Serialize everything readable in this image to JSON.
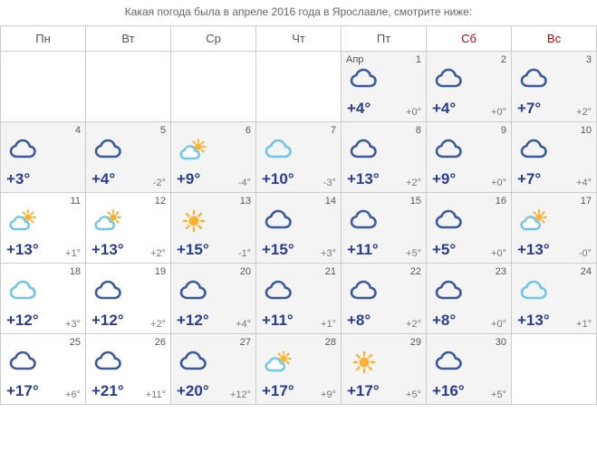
{
  "caption": "Какая погода была в апреле 2016 года в Ярославле, смотрите ниже:",
  "weekdays": [
    "Пн",
    "Вт",
    "Ср",
    "Чт",
    "Пт",
    "Сб",
    "Вс"
  ],
  "month_label": "Апр",
  "colors": {
    "hi_text": "#2a3d8f",
    "lo_text": "#777777",
    "border": "#cccccc",
    "weekend_header": "#cc0000",
    "shaded_bg": "#f4f4f4",
    "cloud_dark": "#3b5b9a",
    "cloud_light": "#6fc6e8",
    "sun": "#f9b233"
  },
  "grid": [
    [
      {
        "empty": true
      },
      {
        "empty": true
      },
      {
        "empty": true
      },
      {
        "empty": true
      },
      {
        "day": 1,
        "month_start": true,
        "shaded": true,
        "icon": "cloud-dark",
        "hi": "+4°",
        "lo": "+0°"
      },
      {
        "day": 2,
        "shaded": true,
        "icon": "cloud-dark",
        "hi": "+4°",
        "lo": "+0°"
      },
      {
        "day": 3,
        "shaded": true,
        "icon": "cloud-dark",
        "hi": "+7°",
        "lo": "+2°"
      }
    ],
    [
      {
        "day": 4,
        "shaded": true,
        "icon": "cloud-dark",
        "hi": "+3°",
        "lo": ""
      },
      {
        "day": 5,
        "shaded": true,
        "icon": "cloud-dark",
        "hi": "+4°",
        "lo": "-2°"
      },
      {
        "day": 6,
        "shaded": true,
        "icon": "partly-sunny",
        "hi": "+9°",
        "lo": "-4°"
      },
      {
        "day": 7,
        "shaded": true,
        "icon": "cloud-light",
        "hi": "+10°",
        "lo": "-3°"
      },
      {
        "day": 8,
        "shaded": true,
        "icon": "cloud-dark",
        "hi": "+13°",
        "lo": "+2°"
      },
      {
        "day": 9,
        "shaded": true,
        "icon": "cloud-dark",
        "hi": "+9°",
        "lo": "+0°"
      },
      {
        "day": 10,
        "shaded": true,
        "icon": "cloud-dark",
        "hi": "+7°",
        "lo": "+4°"
      }
    ],
    [
      {
        "day": 11,
        "icon": "partly-sunny",
        "hi": "+13°",
        "lo": "+1°"
      },
      {
        "day": 12,
        "icon": "partly-sunny",
        "hi": "+13°",
        "lo": "+2°"
      },
      {
        "day": 13,
        "shaded": true,
        "icon": "sun",
        "hi": "+15°",
        "lo": "-1°"
      },
      {
        "day": 14,
        "shaded": true,
        "icon": "cloud-dark",
        "hi": "+15°",
        "lo": "+3°"
      },
      {
        "day": 15,
        "shaded": true,
        "icon": "cloud-dark",
        "hi": "+11°",
        "lo": "+5°"
      },
      {
        "day": 16,
        "shaded": true,
        "icon": "cloud-dark",
        "hi": "+5°",
        "lo": "+0°"
      },
      {
        "day": 17,
        "shaded": true,
        "icon": "partly-sunny",
        "hi": "+13°",
        "lo": "-0°"
      }
    ],
    [
      {
        "day": 18,
        "icon": "cloud-light",
        "hi": "+12°",
        "lo": "+3°"
      },
      {
        "day": 19,
        "icon": "cloud-dark",
        "hi": "+12°",
        "lo": "+2°"
      },
      {
        "day": 20,
        "shaded": true,
        "icon": "cloud-dark",
        "hi": "+12°",
        "lo": "+4°"
      },
      {
        "day": 21,
        "shaded": true,
        "icon": "cloud-dark",
        "hi": "+11°",
        "lo": "+1°"
      },
      {
        "day": 22,
        "shaded": true,
        "icon": "cloud-dark",
        "hi": "+8°",
        "lo": "+2°"
      },
      {
        "day": 23,
        "shaded": true,
        "icon": "cloud-dark",
        "hi": "+8°",
        "lo": "+0°"
      },
      {
        "day": 24,
        "shaded": true,
        "icon": "cloud-light",
        "hi": "+13°",
        "lo": "+1°"
      }
    ],
    [
      {
        "day": 25,
        "icon": "cloud-dark",
        "hi": "+17°",
        "lo": "+6°"
      },
      {
        "day": 26,
        "icon": "cloud-dark",
        "hi": "+21°",
        "lo": "+11°"
      },
      {
        "day": 27,
        "shaded": true,
        "icon": "cloud-dark",
        "hi": "+20°",
        "lo": "+12°"
      },
      {
        "day": 28,
        "shaded": true,
        "icon": "partly-sunny",
        "hi": "+17°",
        "lo": "+9°"
      },
      {
        "day": 29,
        "shaded": true,
        "icon": "sun",
        "hi": "+17°",
        "lo": "+5°"
      },
      {
        "day": 30,
        "shaded": true,
        "icon": "cloud-dark",
        "hi": "+16°",
        "lo": "+5°"
      },
      {
        "empty": true
      }
    ]
  ]
}
